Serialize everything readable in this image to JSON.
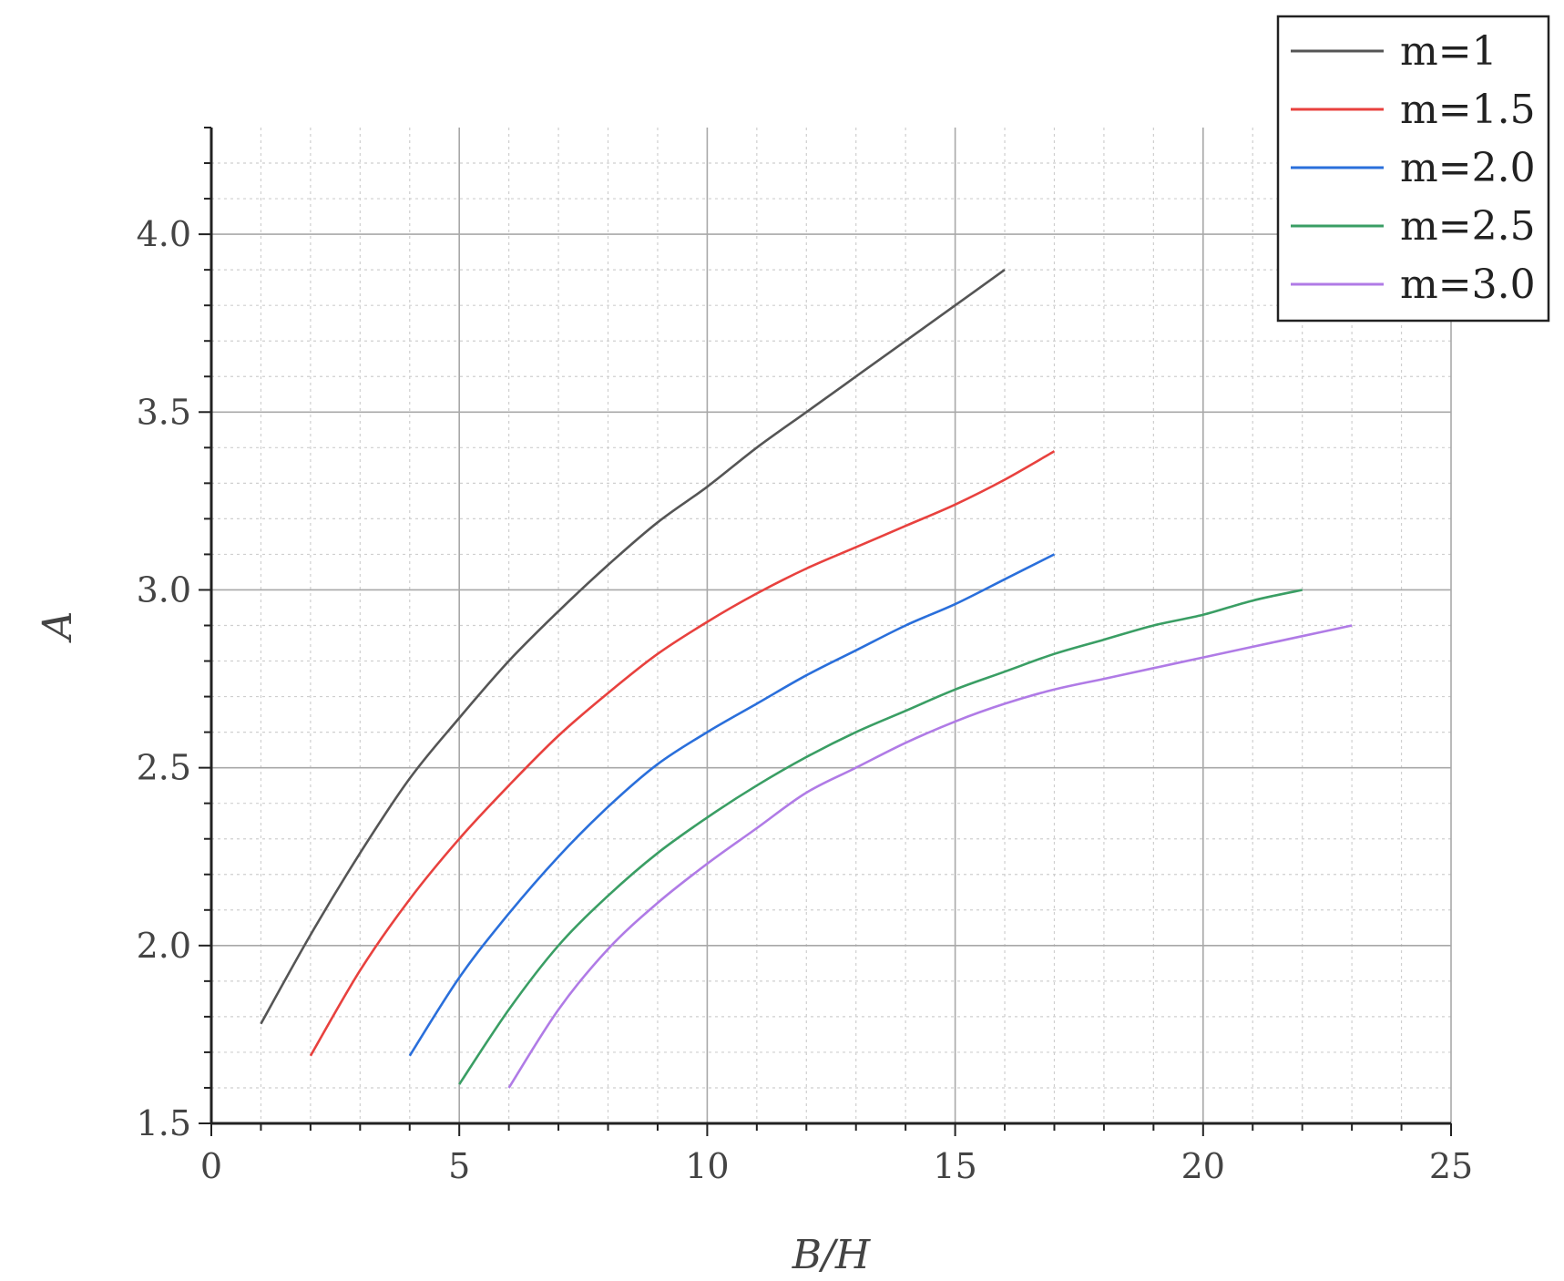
{
  "chart_data": {
    "type": "line",
    "xlabel": "B/H",
    "ylabel": "A",
    "xlim": [
      0,
      25
    ],
    "ylim": [
      1.5,
      4.3
    ],
    "x_ticks": [
      0,
      5,
      10,
      15,
      20,
      25
    ],
    "x_tick_labels": [
      "0",
      "5",
      "10",
      "15",
      "20",
      "25"
    ],
    "y_ticks": [
      1.5,
      2.0,
      2.5,
      3.0,
      3.5,
      4.0
    ],
    "y_tick_labels": [
      "1.5",
      "2.0",
      "2.5",
      "3.0",
      "3.5",
      "4.0"
    ],
    "grid": true,
    "legend_position": "top-right",
    "series": [
      {
        "name": "m=1",
        "color": "#555555",
        "x": [
          1,
          2,
          3,
          4,
          5,
          6,
          7,
          8,
          9,
          10,
          11,
          12,
          13,
          14,
          15,
          16
        ],
        "y": [
          1.78,
          2.03,
          2.26,
          2.47,
          2.64,
          2.8,
          2.94,
          3.07,
          3.19,
          3.29,
          3.4,
          3.5,
          3.6,
          3.7,
          3.8,
          3.9
        ]
      },
      {
        "name": "m=1.5",
        "color": "#e8413e",
        "x": [
          2,
          3,
          4,
          5,
          6,
          7,
          8,
          9,
          10,
          11,
          12,
          13,
          14,
          15,
          16,
          17
        ],
        "y": [
          1.69,
          1.93,
          2.13,
          2.3,
          2.45,
          2.59,
          2.71,
          2.82,
          2.91,
          2.99,
          3.06,
          3.12,
          3.18,
          3.24,
          3.31,
          3.39
        ]
      },
      {
        "name": "m=2.0",
        "color": "#2a6fdb",
        "x": [
          4,
          5,
          6,
          7,
          8,
          9,
          10,
          11,
          12,
          13,
          14,
          15,
          16,
          17
        ],
        "y": [
          1.69,
          1.91,
          2.09,
          2.25,
          2.39,
          2.51,
          2.6,
          2.68,
          2.76,
          2.83,
          2.9,
          2.96,
          3.03,
          3.1
        ]
      },
      {
        "name": "m=2.5",
        "color": "#3a9e64",
        "x": [
          5,
          6,
          7,
          8,
          9,
          10,
          11,
          12,
          13,
          14,
          15,
          16,
          17,
          18,
          19,
          20,
          21,
          22
        ],
        "y": [
          1.61,
          1.82,
          2.0,
          2.14,
          2.26,
          2.36,
          2.45,
          2.53,
          2.6,
          2.66,
          2.72,
          2.77,
          2.82,
          2.86,
          2.9,
          2.93,
          2.97,
          3.0
        ]
      },
      {
        "name": "m=3.0",
        "color": "#b07be6",
        "x": [
          6,
          7,
          8,
          9,
          10,
          11,
          12,
          13,
          14,
          15,
          16,
          17,
          18,
          19,
          20,
          21,
          22,
          23
        ],
        "y": [
          1.6,
          1.82,
          1.99,
          2.12,
          2.23,
          2.33,
          2.43,
          2.5,
          2.57,
          2.63,
          2.68,
          2.72,
          2.75,
          2.78,
          2.81,
          2.84,
          2.87,
          2.9
        ]
      }
    ]
  }
}
